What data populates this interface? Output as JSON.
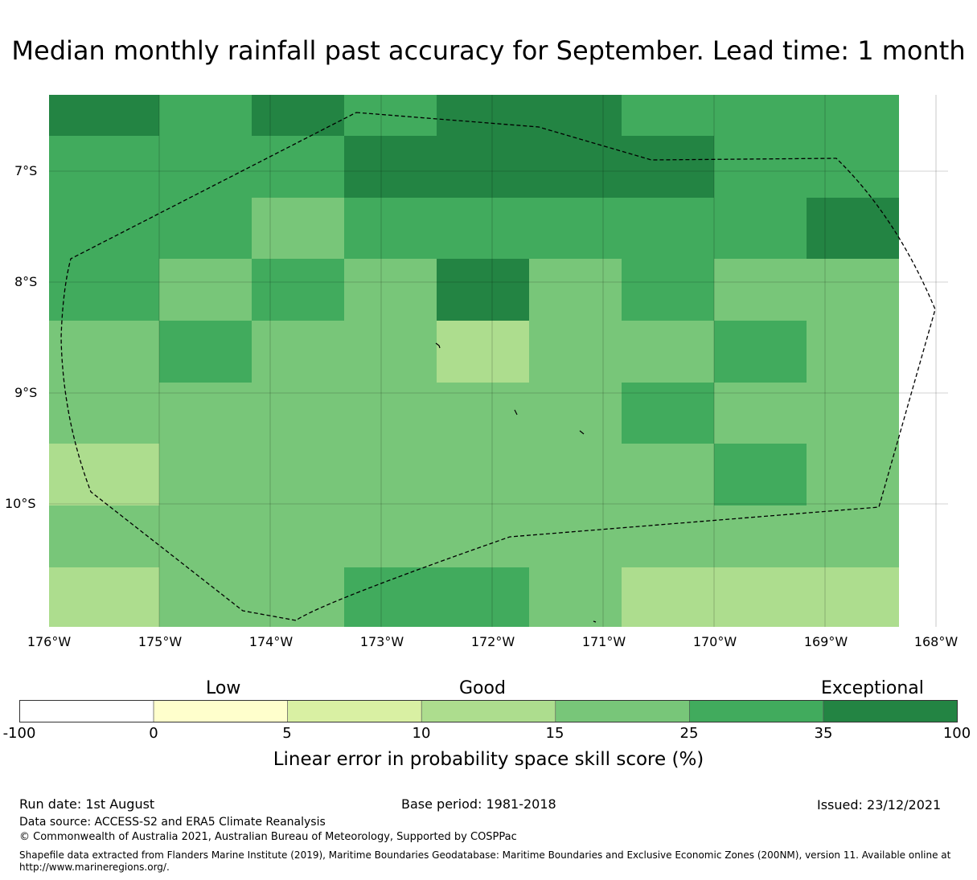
{
  "title": "Median monthly rainfall past accuracy for September. Lead time: 1 month",
  "colors": {
    "c1": "#ffffcc",
    "c2": "#d9f0a3",
    "c3": "#addd8e",
    "c4": "#78c679",
    "c5": "#41ab5d",
    "c6": "#238443"
  },
  "map": {
    "lat_ticks": [
      "7°S",
      "8°S",
      "9°S",
      "10°S"
    ],
    "lon_ticks": [
      "176°W",
      "175°W",
      "174°W",
      "173°W",
      "172°W",
      "171°W",
      "170°W",
      "169°W",
      "168°W"
    ],
    "grid_rows": [
      [
        "c6",
        "c5",
        "c6",
        "c5",
        "c6",
        "c6",
        "c5",
        "c5",
        "c5"
      ],
      [
        "c5",
        "c5",
        "c5",
        "c6",
        "c6",
        "c6",
        "c6",
        "c5",
        "c5"
      ],
      [
        "c5",
        "c5",
        "c4",
        "c5",
        "c5",
        "c5",
        "c5",
        "c5",
        "c6"
      ],
      [
        "c5",
        "c4",
        "c5",
        "c4",
        "c6",
        "c4",
        "c5",
        "c4",
        "c4"
      ],
      [
        "c4",
        "c5",
        "c4",
        "c4",
        "c3",
        "c4",
        "c4",
        "c5",
        "c4"
      ],
      [
        "c4",
        "c4",
        "c4",
        "c4",
        "c4",
        "c4",
        "c5",
        "c4",
        "c4"
      ],
      [
        "c3",
        "c4",
        "c4",
        "c4",
        "c4",
        "c4",
        "c4",
        "c5",
        "c4"
      ],
      [
        "c4",
        "c4",
        "c4",
        "c4",
        "c4",
        "c4",
        "c4",
        "c4",
        "c4"
      ],
      [
        "c3",
        "c4",
        "c4",
        "c5",
        "c5",
        "c4",
        "c3",
        "c3",
        "c3"
      ]
    ]
  },
  "colorbar": {
    "band_labels": [
      "Low",
      "Good",
      "Exceptional"
    ],
    "ticks": [
      "-100",
      "0",
      "5",
      "10",
      "15",
      "25",
      "35",
      "100"
    ],
    "segments": [
      "#ffffff",
      "#ffffcc",
      "#d9f0a3",
      "#addd8e",
      "#78c679",
      "#41ab5d",
      "#238443"
    ],
    "title": "Linear error in probability space skill score (%)"
  },
  "footer": {
    "run_date": "Run date: 1st August",
    "base_period": "Base period: 1981-2018",
    "issued": "Issued: 23/12/2021",
    "data_source": "Data source: ACCESS-S2 and ERA5 Climate Reanalysis",
    "copyright": "© Commonwealth of Australia 2021, Australian Bureau of Meteorology, Supported by COSPPac",
    "shapefile": "Shapefile data extracted from Flanders Marine Institute (2019), Maritime Boundaries Geodatabase: Maritime Boundaries and Exclusive Economic Zones (200NM), version 11. Available online at http://www.marineregions.org/."
  }
}
